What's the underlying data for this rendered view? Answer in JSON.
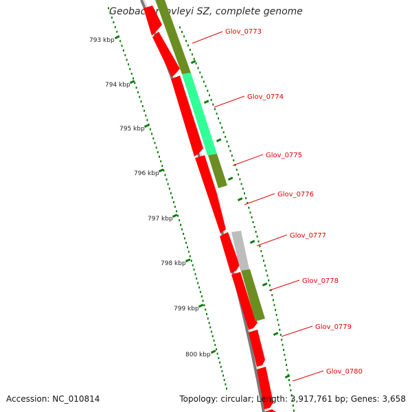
{
  "title": "Geobacter lovleyi SZ, complete genome",
  "footer": {
    "accession": "Accession: NC_010814",
    "topology": "Topology: circular; Length: 3,917,761 bp; Genes: 3,658"
  },
  "scale_labels": [
    "793 kbp",
    "794 kbp",
    "795 kbp",
    "796 kbp",
    "797 kbp",
    "798 kbp",
    "799 kbp",
    "800 kbp"
  ],
  "gene_labels": [
    "Glov_0773",
    "Glov_0774",
    "Glov_0775",
    "Glov_0776",
    "Glov_0777",
    "Glov_0778",
    "Glov_0779",
    "Glov_0780"
  ],
  "colors": {
    "cds": "#ff0000",
    "olive": "#6b8e23",
    "teal": "#33ff99",
    "grey": "#bdbdbd",
    "backbone": "#7a7a7a",
    "ticks": "#0a7a0a",
    "label": "#e00000"
  },
  "icons": []
}
